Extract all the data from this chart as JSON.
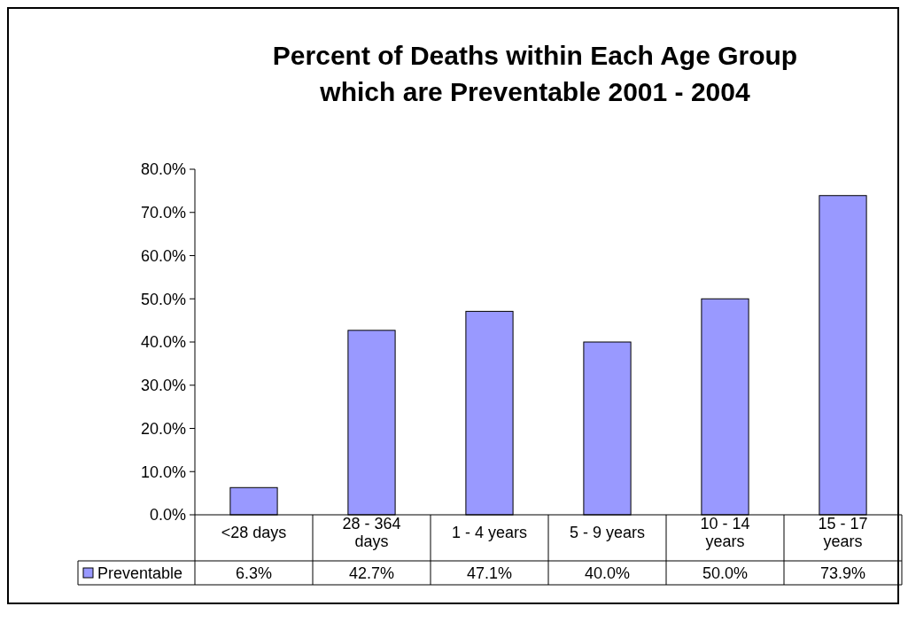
{
  "chart_data": {
    "type": "bar",
    "title": "Percent of Deaths within Each Age Group which are Preventable 2001 - 2004",
    "categories": [
      "<28 days",
      "28 - 364 days",
      "1 - 4 years",
      "5 - 9 years",
      "10 - 14 years",
      "15 - 17 years"
    ],
    "series": [
      {
        "name": "Preventable",
        "color": "#9999ff",
        "values": [
          6.3,
          42.7,
          47.1,
          40.0,
          50.0,
          73.9
        ],
        "value_labels": [
          "6.3%",
          "42.7%",
          "47.1%",
          "40.0%",
          "50.0%",
          "73.9%"
        ]
      }
    ],
    "ylim": [
      0,
      80
    ],
    "yticks": [
      {
        "value": 0,
        "label": "0.0%"
      },
      {
        "value": 10,
        "label": "10.0%"
      },
      {
        "value": 20,
        "label": "20.0%"
      },
      {
        "value": 30,
        "label": "30.0%"
      },
      {
        "value": 40,
        "label": "40.0%"
      },
      {
        "value": 50,
        "label": "50.0%"
      },
      {
        "value": 60,
        "label": "60.0%"
      },
      {
        "value": 70,
        "label": "70.0%"
      },
      {
        "value": 80,
        "label": "80.0%"
      }
    ],
    "grid": false,
    "legend": "bottom left"
  }
}
